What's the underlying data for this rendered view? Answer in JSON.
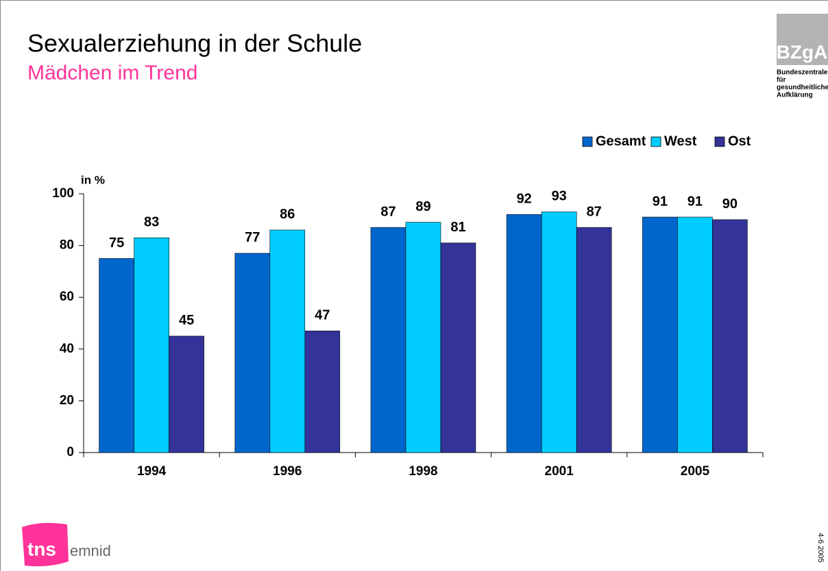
{
  "chart_data": {
    "type": "bar",
    "title": "Sexualerziehung in der Schule",
    "subtitle": "Mädchen im Trend",
    "ylabel": "in %",
    "categories": [
      "1994",
      "1996",
      "1998",
      "2001",
      "2005"
    ],
    "series": [
      {
        "name": "Gesamt",
        "color": "#0066cc",
        "values": [
          75,
          77,
          87,
          92,
          91
        ]
      },
      {
        "name": "West",
        "color": "#00ccff",
        "values": [
          83,
          86,
          89,
          93,
          91
        ]
      },
      {
        "name": "Ost",
        "color": "#333399",
        "values": [
          45,
          47,
          81,
          87,
          90
        ]
      }
    ],
    "ylim": [
      0,
      100
    ],
    "yticks": [
      0,
      20,
      40,
      60,
      80,
      100
    ],
    "legend": "top-right",
    "grid": false
  },
  "logos": {
    "bzga": {
      "name": "BZgA",
      "lines": [
        "Bundeszentrale",
        "für",
        "gesundheitliche",
        "Aufklärung"
      ]
    },
    "tns": {
      "name": "tns",
      "suffix": "emnid"
    }
  },
  "footer": {
    "date": "4-6 2005"
  }
}
